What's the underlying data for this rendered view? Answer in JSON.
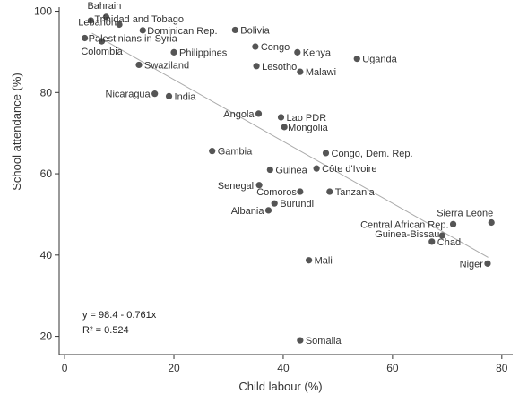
{
  "chart_data": {
    "type": "scatter",
    "xlabel": "Child labour (%)",
    "ylabel": "School attendance (%)",
    "xlim": [
      -1,
      82
    ],
    "ylim": [
      15.5,
      101
    ],
    "x_ticks": [
      0,
      20,
      40,
      60,
      80
    ],
    "y_ticks": [
      20,
      40,
      60,
      80,
      100
    ],
    "grid": false,
    "colors": {
      "point": "#555555",
      "fit_line": "#aaaaaa",
      "axis": "#333333"
    },
    "fit": {
      "intercept": 98.4,
      "slope": -0.761,
      "x_range": [
        5,
        77.5
      ],
      "equation_label": "y = 98.4 - 0.761x",
      "r2_label": "R² = 0.524"
    },
    "points": [
      {
        "label": "Bahrain",
        "x": 7.6,
        "y": 98.6
      },
      {
        "label": "Trinidad and Tobago",
        "x": 4.8,
        "y": 97.7
      },
      {
        "label": "Lebanon",
        "x": 10,
        "y": 96.7
      },
      {
        "label": "Dominican Rep.",
        "x": 14.3,
        "y": 95.3
      },
      {
        "label": "Palestinians in Syria",
        "x": 3.7,
        "y": 93.4
      },
      {
        "label": "Colombia",
        "x": 6.8,
        "y": 92.6
      },
      {
        "label": "Bolivia",
        "x": 31.2,
        "y": 95.4
      },
      {
        "label": "Congo",
        "x": 34.9,
        "y": 91.3
      },
      {
        "label": "Kenya",
        "x": 42.6,
        "y": 89.9
      },
      {
        "label": "Philippines",
        "x": 20,
        "y": 89.9
      },
      {
        "label": "Uganda",
        "x": 53.5,
        "y": 88.3
      },
      {
        "label": "Swaziland",
        "x": 13.6,
        "y": 86.8
      },
      {
        "label": "Lesotho",
        "x": 35.1,
        "y": 86.5
      },
      {
        "label": "Malawi",
        "x": 43.1,
        "y": 85.1
      },
      {
        "label": "Nicaragua",
        "x": 16.5,
        "y": 79.7
      },
      {
        "label": "India",
        "x": 19.1,
        "y": 79.1
      },
      {
        "label": "Angola",
        "x": 35.5,
        "y": 74.8
      },
      {
        "label": "Lao PDR",
        "x": 39.6,
        "y": 73.9
      },
      {
        "label": "Mongolia",
        "x": 40.2,
        "y": 71.5
      },
      {
        "label": "Gambia",
        "x": 27,
        "y": 65.6
      },
      {
        "label": "Congo, Dem. Rep.",
        "x": 47.8,
        "y": 65.1
      },
      {
        "label": "Guinea",
        "x": 37.6,
        "y": 61
      },
      {
        "label": "Côte d'Ivoire",
        "x": 46.1,
        "y": 61.3
      },
      {
        "label": "Senegal",
        "x": 35.6,
        "y": 57.2
      },
      {
        "label": "Comoros",
        "x": 43.1,
        "y": 55.6
      },
      {
        "label": "Tanzania",
        "x": 48.5,
        "y": 55.6
      },
      {
        "label": "Burundi",
        "x": 38.4,
        "y": 52.7
      },
      {
        "label": "Albania",
        "x": 37.3,
        "y": 51
      },
      {
        "label": "Sierra Leone",
        "x": 78.1,
        "y": 48
      },
      {
        "label": "Central African Rep.",
        "x": 71.1,
        "y": 47.6
      },
      {
        "label": "Guinea-Bissau",
        "x": 69.1,
        "y": 44.8
      },
      {
        "label": "Chad",
        "x": 67.2,
        "y": 43.3
      },
      {
        "label": "Mali",
        "x": 44.7,
        "y": 38.7
      },
      {
        "label": "Niger",
        "x": 77.4,
        "y": 37.9
      },
      {
        "label": "Somalia",
        "x": 43.1,
        "y": 19
      }
    ]
  }
}
